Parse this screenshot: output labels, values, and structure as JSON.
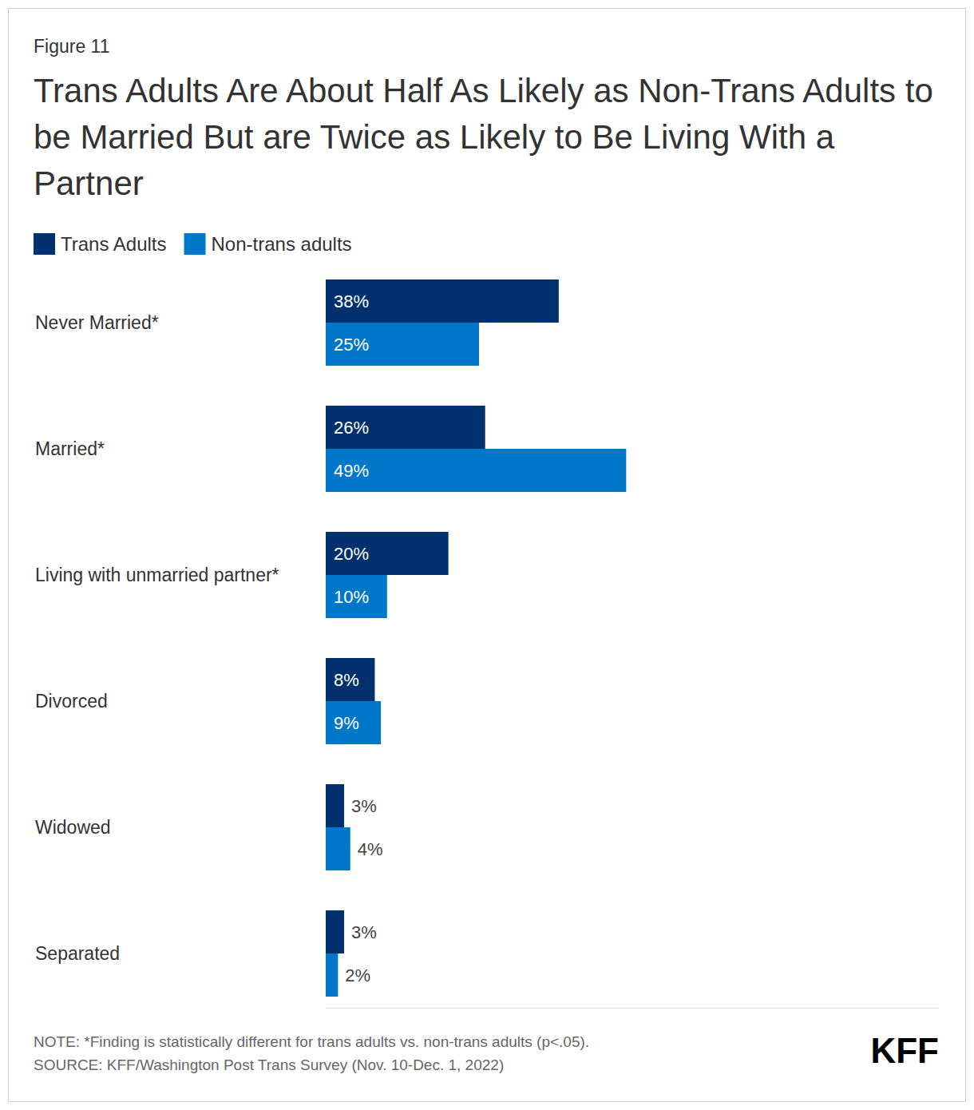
{
  "chart_data": {
    "type": "bar",
    "orientation": "horizontal",
    "figure_label": "Figure 11",
    "title": "Trans Adults Are About Half As Likely as Non-Trans Adults to be Married But are Twice as Likely to Be Living With a Partner",
    "categories": [
      "Never Married*",
      "Married*",
      "Living with unmarried partner*",
      "Divorced",
      "Widowed",
      "Separated"
    ],
    "series": [
      {
        "name": "Trans Adults",
        "color": "#00316e",
        "values": [
          38,
          26,
          20,
          8,
          3,
          3
        ],
        "value_labels": [
          "38%",
          "26%",
          "20%",
          "8%",
          "3%",
          "3%"
        ]
      },
      {
        "name": "Non-trans adults",
        "color": "#0077c8",
        "values": [
          25,
          49,
          10,
          9,
          4,
          2
        ],
        "value_labels": [
          "25%",
          "49%",
          "10%",
          "9%",
          "4%",
          "2%"
        ]
      }
    ],
    "xlim": [
      0,
      100
    ],
    "data_labels": true,
    "tick_labels": false,
    "legend": "top-left",
    "note": "NOTE: *Finding is statistically different for trans adults vs. non-trans adults (p<.05).",
    "source": "SOURCE: KFF/Washington Post Trans Survey (Nov. 10-Dec. 1, 2022)",
    "logo": "KFF"
  }
}
